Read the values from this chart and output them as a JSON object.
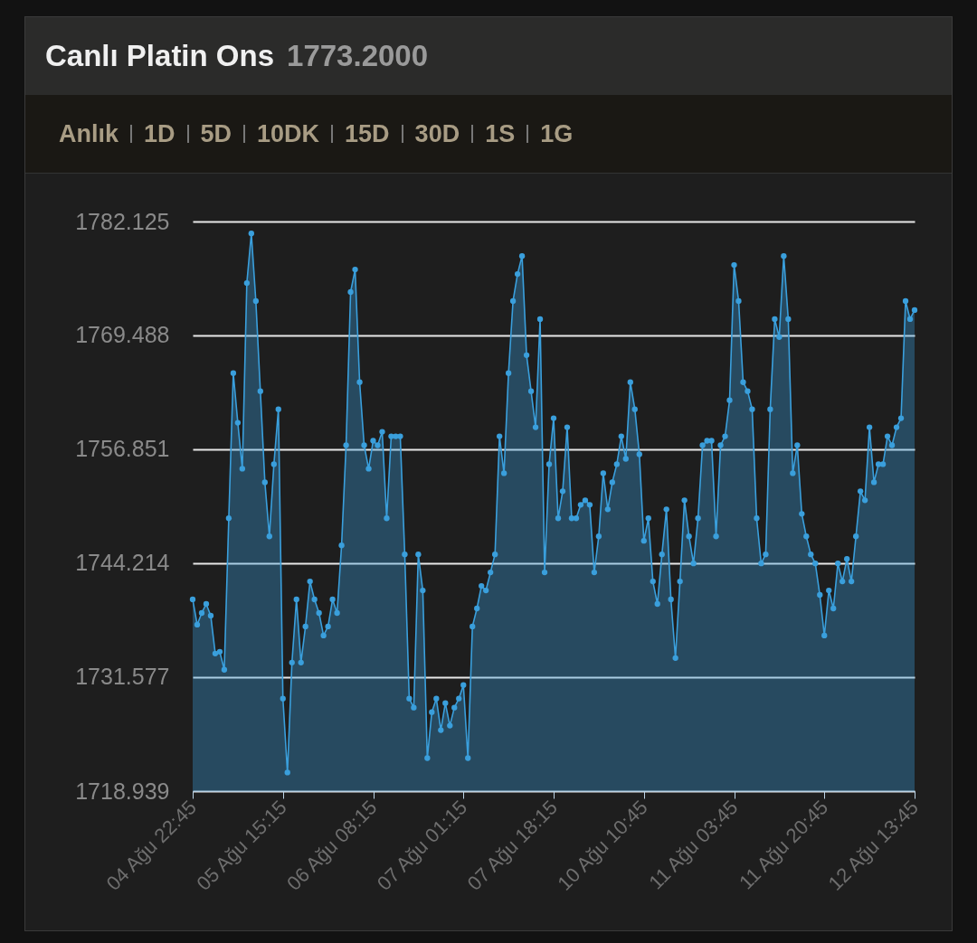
{
  "chart_data": {
    "type": "area",
    "title": "Canlı Platin Ons",
    "subtitle": "1773.2000",
    "annotations": [
      "Anlık",
      "1D",
      "5D",
      "10DK",
      "15D",
      "30D",
      "1S",
      "1G"
    ],
    "categories": [
      "04 Ağu 22:45",
      null,
      null,
      null,
      null,
      null,
      null,
      null,
      null,
      null,
      null,
      null,
      null,
      null,
      null,
      null,
      null,
      null,
      null,
      null,
      "05 Ağu 15:15",
      null,
      null,
      null,
      null,
      null,
      null,
      null,
      null,
      null,
      null,
      null,
      null,
      null,
      null,
      null,
      null,
      null,
      null,
      null,
      "06 Ağu 08:15",
      null,
      null,
      null,
      null,
      null,
      null,
      null,
      null,
      null,
      null,
      null,
      null,
      null,
      null,
      null,
      null,
      null,
      null,
      null,
      "07 Ağu 01:15",
      null,
      null,
      null,
      null,
      null,
      null,
      null,
      null,
      null,
      null,
      null,
      null,
      null,
      null,
      null,
      null,
      null,
      null,
      null,
      "07 Ağu 18:15",
      null,
      null,
      null,
      null,
      null,
      null,
      null,
      null,
      null,
      null,
      null,
      null,
      null,
      null,
      null,
      null,
      null,
      null,
      null,
      "10 Ağu 10:45",
      null,
      null,
      null,
      null,
      null,
      null,
      null,
      null,
      null,
      null,
      null,
      null,
      null,
      null,
      null,
      null,
      null,
      null,
      null,
      "11 Ağu 03:45",
      null,
      null,
      null,
      null,
      null,
      null,
      null,
      null,
      null,
      null,
      null,
      null,
      null,
      null,
      null,
      null,
      null,
      null,
      null,
      "11 Ağu 20:45",
      null,
      null,
      null,
      null,
      null,
      null,
      null,
      null,
      null,
      null,
      null,
      null,
      null,
      null,
      null,
      null,
      null,
      null,
      null,
      "12 Ağu 13:45"
    ],
    "series": [
      {
        "color": "#3a9fdc",
        "values": [
          1740.2,
          1737.4,
          1738.7,
          1739.7,
          1738.4,
          1734.2,
          1734.4,
          1732.4,
          1749.2,
          1765.3,
          1759.8,
          1754.7,
          1775.3,
          1780.8,
          1773.3,
          1763.3,
          1753.2,
          1747.2,
          1755.2,
          1761.3,
          1729.2,
          1721.0,
          1733.2,
          1740.2,
          1733.2,
          1737.2,
          1742.2,
          1740.2,
          1738.7,
          1736.2,
          1737.2,
          1740.2,
          1738.7,
          1746.2,
          1757.3,
          1774.3,
          1776.8,
          1764.3,
          1757.3,
          1754.7,
          1757.8,
          1757.3,
          1758.8,
          1749.2,
          1758.3,
          1758.3,
          1758.3,
          1745.2,
          1729.2,
          1728.2,
          1745.2,
          1741.2,
          1722.6,
          1727.7,
          1729.2,
          1725.7,
          1728.7,
          1726.2,
          1728.2,
          1729.2,
          1730.7,
          1722.6,
          1737.2,
          1739.2,
          1741.7,
          1741.2,
          1743.2,
          1745.2,
          1758.3,
          1754.2,
          1765.3,
          1773.3,
          1776.3,
          1778.3,
          1767.3,
          1763.3,
          1759.3,
          1771.3,
          1743.2,
          1755.2,
          1760.3,
          1749.2,
          1752.2,
          1759.3,
          1749.2,
          1749.2,
          1750.7,
          1751.2,
          1750.7,
          1743.2,
          1747.2,
          1754.2,
          1750.2,
          1753.2,
          1755.2,
          1758.3,
          1755.8,
          1764.3,
          1761.3,
          1756.3,
          1746.7,
          1749.2,
          1742.2,
          1739.7,
          1745.2,
          1750.2,
          1740.2,
          1733.7,
          1742.2,
          1751.2,
          1747.2,
          1744.2,
          1749.2,
          1757.3,
          1757.8,
          1757.8,
          1747.2,
          1757.3,
          1758.3,
          1762.3,
          1777.3,
          1773.3,
          1764.3,
          1763.3,
          1761.3,
          1749.2,
          1744.2,
          1745.2,
          1761.3,
          1771.3,
          1769.3,
          1778.3,
          1771.3,
          1754.2,
          1757.3,
          1749.7,
          1747.2,
          1745.2,
          1744.2,
          1740.7,
          1736.2,
          1741.2,
          1739.2,
          1744.2,
          1742.2,
          1744.7,
          1742.2,
          1747.2,
          1752.2,
          1751.2,
          1759.3,
          1753.2,
          1755.2,
          1755.2,
          1758.3,
          1757.3,
          1759.3,
          1760.3,
          1773.3,
          1771.3,
          1772.3
        ]
      }
    ],
    "ylim": [
      1718.939,
      1782.125
    ],
    "yticks": [
      1718.939,
      1731.577,
      1744.214,
      1756.851,
      1769.488,
      1782.125
    ],
    "grid": "y",
    "marker": "circle"
  }
}
